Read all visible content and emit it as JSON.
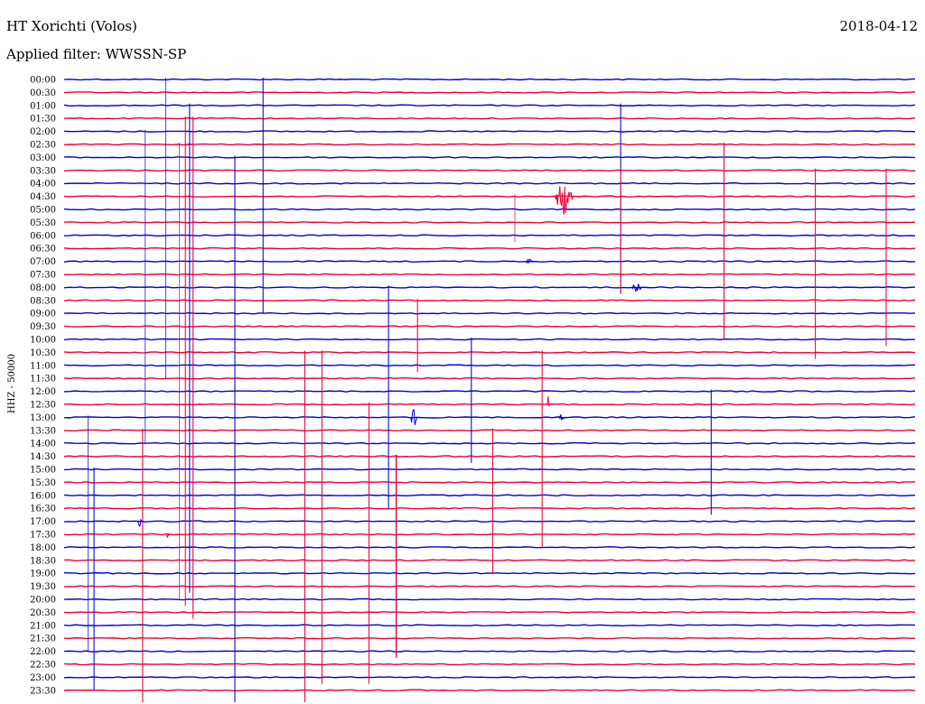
{
  "header": {
    "station": "HT Xorichti (Volos)",
    "date": "2018-04-12",
    "filter": "Applied filter: WWSSN-SP"
  },
  "chart_data": {
    "type": "line",
    "channel_label": "HHZ - 50000",
    "colors": {
      "a": "#0000dd",
      "b": "#ee0033"
    },
    "rows": [
      "00:00",
      "00:30",
      "01:00",
      "01:30",
      "02:00",
      "02:30",
      "03:00",
      "03:30",
      "04:00",
      "04:30",
      "05:00",
      "05:30",
      "06:00",
      "06:30",
      "07:00",
      "07:30",
      "08:00",
      "08:30",
      "09:00",
      "09:30",
      "10:00",
      "10:30",
      "11:00",
      "11:30",
      "12:00",
      "12:30",
      "13:00",
      "13:30",
      "14:00",
      "14:30",
      "15:00",
      "15:30",
      "16:00",
      "16:30",
      "17:00",
      "17:30",
      "18:00",
      "18:30",
      "19:00",
      "19:30",
      "20:00",
      "20:30",
      "21:00",
      "21:30",
      "22:00",
      "22:30",
      "23:00",
      "23:30"
    ],
    "spikes": [
      [
        26,
        0.028,
        36,
        2
      ],
      [
        30,
        0.035,
        34,
        3
      ],
      [
        27,
        0.092,
        47,
        3
      ],
      [
        4,
        0.095,
        48,
        2
      ],
      [
        0,
        0.119,
        46,
        2
      ],
      [
        5,
        0.135,
        70,
        2
      ],
      [
        3,
        0.142,
        75,
        3
      ],
      [
        2,
        0.147,
        75,
        3
      ],
      [
        3,
        0.151,
        77,
        3
      ],
      [
        6,
        0.2,
        91,
        3
      ],
      [
        0,
        0.233,
        36,
        3
      ],
      [
        21,
        0.282,
        63,
        3
      ],
      [
        21,
        0.302,
        51,
        3
      ],
      [
        25,
        0.357,
        43,
        3
      ],
      [
        16,
        0.38,
        34,
        3
      ],
      [
        29,
        0.389,
        31,
        4
      ],
      [
        17,
        0.414,
        11,
        3
      ],
      [
        20,
        0.477,
        19,
        3
      ],
      [
        9,
        0.528,
        7,
        2
      ],
      [
        2,
        0.652,
        29,
        3
      ],
      [
        7,
        0.652,
        19,
        3
      ],
      [
        5,
        0.773,
        30,
        3
      ],
      [
        7,
        0.88,
        29,
        3
      ],
      [
        7,
        0.963,
        27,
        3
      ],
      [
        27,
        0.502,
        22,
        3
      ],
      [
        24,
        0.758,
        19,
        3
      ],
      [
        21,
        0.56,
        30,
        3
      ]
    ],
    "bursts": [
      [
        9,
        0.575,
        0.61,
        26
      ],
      [
        26,
        0.406,
        0.418,
        15
      ],
      [
        25,
        0.566,
        0.571,
        14
      ],
      [
        16,
        0.665,
        0.685,
        6
      ],
      [
        34,
        0.086,
        0.094,
        8
      ],
      [
        14,
        0.54,
        0.555,
        4
      ],
      [
        35,
        0.12,
        0.126,
        8
      ],
      [
        26,
        0.579,
        0.59,
        6
      ]
    ]
  }
}
